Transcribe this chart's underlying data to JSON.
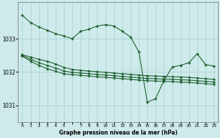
{
  "bg_color": "#ceeaea",
  "grid_color": "#aad4d4",
  "line_color": "#1a5c2a",
  "title": "Graphe pression niveau de la mer (hPa)",
  "xlim": [
    -0.5,
    23.5
  ],
  "ylim": [
    1030.5,
    1034.1
  ],
  "yticks": [
    1031,
    1032,
    1033
  ],
  "hours": [
    0,
    1,
    2,
    3,
    4,
    5,
    6,
    7,
    8,
    9,
    10,
    11,
    12,
    13,
    14,
    15,
    16,
    17,
    18,
    19,
    20,
    21,
    22,
    23
  ],
  "series_main": [
    1033.7,
    1033.48,
    1033.35,
    1033.25,
    1033.15,
    1033.08,
    1033.0,
    1033.22,
    1033.28,
    1033.38,
    1033.42,
    1033.38,
    1033.22,
    1033.05,
    1032.6,
    1031.1,
    1031.2,
    1031.75,
    1032.15,
    1032.2,
    1032.28,
    1032.55,
    1032.22,
    1032.18
  ],
  "series_a": [
    1032.52,
    1032.45,
    1032.38,
    1032.32,
    1032.24,
    1032.14,
    1032.08,
    1032.05,
    1032.03,
    1032.01,
    1031.99,
    1031.97,
    1031.95,
    1031.93,
    1031.91,
    1031.89,
    1031.88,
    1031.87,
    1031.86,
    1031.85,
    1031.84,
    1031.82,
    1031.8,
    1031.78
  ],
  "series_b": [
    1032.5,
    1032.38,
    1032.28,
    1032.2,
    1032.12,
    1032.03,
    1031.99,
    1031.97,
    1031.95,
    1031.93,
    1031.91,
    1031.89,
    1031.87,
    1031.85,
    1031.83,
    1031.81,
    1031.8,
    1031.79,
    1031.78,
    1031.77,
    1031.76,
    1031.74,
    1031.72,
    1031.7
  ],
  "series_c": [
    1032.48,
    1032.32,
    1032.2,
    1032.1,
    1032.02,
    1031.95,
    1031.92,
    1031.9,
    1031.88,
    1031.86,
    1031.84,
    1031.82,
    1031.8,
    1031.78,
    1031.76,
    1031.74,
    1031.73,
    1031.72,
    1031.71,
    1031.7,
    1031.69,
    1031.67,
    1031.65,
    1031.63
  ]
}
